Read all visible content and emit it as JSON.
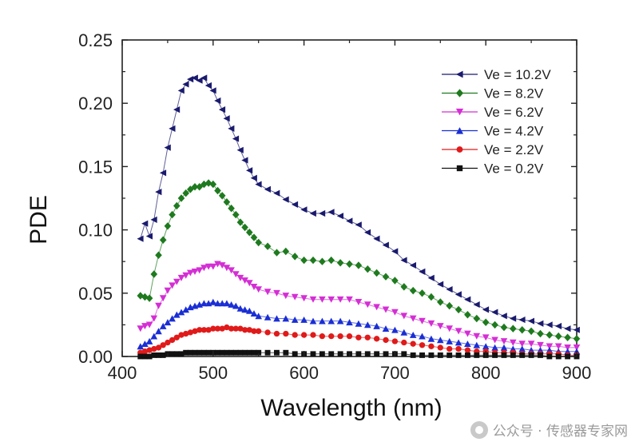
{
  "chart_data": {
    "type": "scatter",
    "title": "",
    "xlabel": "Wavelength (nm)",
    "ylabel": "PDE",
    "xlim": [
      400,
      900
    ],
    "ylim": [
      0,
      0.25
    ],
    "xticks": [
      "400",
      "500",
      "600",
      "700",
      "800",
      "900"
    ],
    "yticks": [
      "0.00",
      "0.05",
      "0.10",
      "0.15",
      "0.20",
      "0.25"
    ],
    "grid": false,
    "legend": "top-right",
    "series": [
      {
        "name": "Ve = 10.2V",
        "color": "#1a1a6e",
        "marker": "triangle-left",
        "x": [
          420,
          425,
          430,
          435,
          440,
          445,
          450,
          455,
          460,
          465,
          470,
          475,
          480,
          485,
          490,
          495,
          500,
          505,
          510,
          515,
          520,
          525,
          530,
          535,
          540,
          545,
          550,
          560,
          570,
          580,
          590,
          600,
          610,
          620,
          630,
          640,
          650,
          660,
          670,
          680,
          690,
          700,
          710,
          720,
          730,
          740,
          750,
          760,
          770,
          780,
          790,
          800,
          810,
          820,
          830,
          840,
          850,
          860,
          870,
          880,
          890,
          900
        ],
        "y": [
          0.093,
          0.105,
          0.095,
          0.108,
          0.13,
          0.145,
          0.165,
          0.18,
          0.195,
          0.21,
          0.215,
          0.219,
          0.22,
          0.218,
          0.22,
          0.214,
          0.21,
          0.202,
          0.195,
          0.188,
          0.18,
          0.172,
          0.163,
          0.155,
          0.147,
          0.141,
          0.136,
          0.132,
          0.129,
          0.124,
          0.12,
          0.116,
          0.113,
          0.113,
          0.114,
          0.111,
          0.107,
          0.104,
          0.098,
          0.093,
          0.088,
          0.083,
          0.076,
          0.072,
          0.067,
          0.062,
          0.057,
          0.053,
          0.049,
          0.045,
          0.041,
          0.037,
          0.035,
          0.032,
          0.03,
          0.029,
          0.028,
          0.026,
          0.025,
          0.024,
          0.022,
          0.021
        ]
      },
      {
        "name": "Ve = 8.2V",
        "color": "#1e7a1e",
        "marker": "diamond",
        "x": [
          420,
          425,
          430,
          435,
          440,
          445,
          450,
          455,
          460,
          465,
          470,
          475,
          480,
          485,
          490,
          495,
          500,
          505,
          510,
          515,
          520,
          525,
          530,
          535,
          540,
          545,
          550,
          560,
          570,
          580,
          590,
          600,
          610,
          620,
          630,
          640,
          650,
          660,
          670,
          680,
          690,
          700,
          710,
          720,
          730,
          740,
          750,
          760,
          770,
          780,
          790,
          800,
          810,
          820,
          830,
          840,
          850,
          860,
          870,
          880,
          890,
          900
        ],
        "y": [
          0.048,
          0.047,
          0.046,
          0.065,
          0.08,
          0.092,
          0.103,
          0.112,
          0.119,
          0.125,
          0.129,
          0.132,
          0.134,
          0.134,
          0.136,
          0.137,
          0.136,
          0.131,
          0.127,
          0.122,
          0.117,
          0.112,
          0.106,
          0.102,
          0.098,
          0.094,
          0.09,
          0.087,
          0.082,
          0.083,
          0.079,
          0.076,
          0.076,
          0.075,
          0.076,
          0.074,
          0.073,
          0.072,
          0.069,
          0.066,
          0.063,
          0.06,
          0.055,
          0.052,
          0.05,
          0.047,
          0.043,
          0.04,
          0.037,
          0.033,
          0.03,
          0.027,
          0.025,
          0.023,
          0.022,
          0.021,
          0.02,
          0.018,
          0.017,
          0.016,
          0.015,
          0.014
        ]
      },
      {
        "name": "Ve = 6.2V",
        "color": "#d42ed4",
        "marker": "triangle-down",
        "x": [
          420,
          425,
          430,
          435,
          440,
          445,
          450,
          455,
          460,
          465,
          470,
          475,
          480,
          485,
          490,
          495,
          500,
          505,
          510,
          515,
          520,
          525,
          530,
          535,
          540,
          545,
          550,
          560,
          570,
          580,
          590,
          600,
          610,
          620,
          630,
          640,
          650,
          660,
          670,
          680,
          690,
          700,
          710,
          720,
          730,
          740,
          750,
          760,
          770,
          780,
          790,
          800,
          810,
          820,
          830,
          840,
          850,
          860,
          870,
          880,
          890,
          900
        ],
        "y": [
          0.022,
          0.024,
          0.025,
          0.03,
          0.04,
          0.046,
          0.052,
          0.056,
          0.059,
          0.062,
          0.064,
          0.066,
          0.067,
          0.068,
          0.07,
          0.071,
          0.071,
          0.073,
          0.072,
          0.07,
          0.068,
          0.065,
          0.062,
          0.06,
          0.058,
          0.055,
          0.053,
          0.051,
          0.05,
          0.048,
          0.047,
          0.046,
          0.045,
          0.045,
          0.045,
          0.045,
          0.045,
          0.043,
          0.041,
          0.039,
          0.037,
          0.035,
          0.032,
          0.03,
          0.028,
          0.026,
          0.024,
          0.022,
          0.02,
          0.018,
          0.016,
          0.015,
          0.013,
          0.012,
          0.011,
          0.01,
          0.01,
          0.009,
          0.008,
          0.008,
          0.007,
          0.007
        ]
      },
      {
        "name": "Ve = 4.2V",
        "color": "#1a2ed4",
        "marker": "triangle-up",
        "x": [
          420,
          425,
          430,
          435,
          440,
          445,
          450,
          455,
          460,
          465,
          470,
          475,
          480,
          485,
          490,
          495,
          500,
          505,
          510,
          515,
          520,
          525,
          530,
          535,
          540,
          545,
          550,
          560,
          570,
          580,
          590,
          600,
          610,
          620,
          630,
          640,
          650,
          660,
          670,
          680,
          690,
          700,
          710,
          720,
          730,
          740,
          750,
          760,
          770,
          780,
          790,
          800,
          810,
          820,
          830,
          840,
          850,
          860,
          870,
          880,
          890,
          900
        ],
        "y": [
          0.008,
          0.01,
          0.012,
          0.016,
          0.02,
          0.024,
          0.027,
          0.03,
          0.033,
          0.035,
          0.037,
          0.039,
          0.04,
          0.041,
          0.042,
          0.042,
          0.043,
          0.042,
          0.042,
          0.042,
          0.041,
          0.04,
          0.038,
          0.037,
          0.036,
          0.034,
          0.032,
          0.031,
          0.03,
          0.03,
          0.029,
          0.029,
          0.028,
          0.028,
          0.028,
          0.028,
          0.027,
          0.026,
          0.025,
          0.024,
          0.022,
          0.021,
          0.019,
          0.017,
          0.016,
          0.014,
          0.013,
          0.012,
          0.011,
          0.01,
          0.009,
          0.008,
          0.007,
          0.007,
          0.006,
          0.006,
          0.005,
          0.005,
          0.005,
          0.004,
          0.004,
          0.004
        ]
      },
      {
        "name": "Ve = 2.2V",
        "color": "#e01a1a",
        "marker": "circle",
        "x": [
          420,
          425,
          430,
          435,
          440,
          445,
          450,
          455,
          460,
          465,
          470,
          475,
          480,
          485,
          490,
          495,
          500,
          505,
          510,
          515,
          520,
          525,
          530,
          535,
          540,
          545,
          550,
          560,
          570,
          580,
          590,
          600,
          610,
          620,
          630,
          640,
          650,
          660,
          670,
          680,
          690,
          700,
          710,
          720,
          730,
          740,
          750,
          760,
          770,
          780,
          790,
          800,
          810,
          820,
          830,
          840,
          850,
          860,
          870,
          880,
          890,
          900
        ],
        "y": [
          0.003,
          0.004,
          0.005,
          0.006,
          0.007,
          0.009,
          0.011,
          0.013,
          0.015,
          0.017,
          0.018,
          0.019,
          0.02,
          0.021,
          0.021,
          0.021,
          0.022,
          0.022,
          0.022,
          0.023,
          0.022,
          0.022,
          0.022,
          0.021,
          0.021,
          0.02,
          0.02,
          0.019,
          0.018,
          0.018,
          0.017,
          0.017,
          0.017,
          0.016,
          0.016,
          0.016,
          0.016,
          0.015,
          0.015,
          0.014,
          0.013,
          0.012,
          0.011,
          0.01,
          0.009,
          0.008,
          0.007,
          0.006,
          0.006,
          0.005,
          0.004,
          0.004,
          0.003,
          0.003,
          0.003,
          0.002,
          0.002,
          0.002,
          0.002,
          0.002,
          0.001,
          0.001
        ]
      },
      {
        "name": "Ve = 0.2V",
        "color": "#111111",
        "marker": "square",
        "x": [
          420,
          425,
          430,
          435,
          440,
          445,
          450,
          455,
          460,
          465,
          470,
          475,
          480,
          485,
          490,
          495,
          500,
          505,
          510,
          515,
          520,
          525,
          530,
          535,
          540,
          545,
          550,
          560,
          570,
          580,
          590,
          600,
          610,
          620,
          630,
          640,
          650,
          660,
          670,
          680,
          690,
          700,
          710,
          720,
          730,
          740,
          750,
          760,
          770,
          780,
          790,
          800,
          810,
          820,
          830,
          840,
          850,
          860,
          870,
          880,
          890,
          900
        ],
        "y": [
          0.0,
          0.0,
          0.0,
          0.001,
          0.001,
          0.001,
          0.002,
          0.002,
          0.002,
          0.002,
          0.003,
          0.003,
          0.003,
          0.003,
          0.003,
          0.003,
          0.003,
          0.003,
          0.003,
          0.003,
          0.003,
          0.003,
          0.003,
          0.003,
          0.003,
          0.003,
          0.003,
          0.003,
          0.003,
          0.003,
          0.002,
          0.002,
          0.002,
          0.002,
          0.002,
          0.002,
          0.002,
          0.002,
          0.002,
          0.002,
          0.002,
          0.002,
          0.002,
          0.001,
          0.001,
          0.001,
          0.001,
          0.001,
          0.001,
          0.001,
          0.001,
          0.001,
          0.001,
          0.001,
          0.001,
          0.001,
          0.001,
          0.001,
          0.0,
          0.0,
          0.0,
          0.0
        ]
      }
    ]
  },
  "watermark": {
    "text": "公众号 · 传感器专家网",
    "icon": "wechat-logo-icon"
  }
}
